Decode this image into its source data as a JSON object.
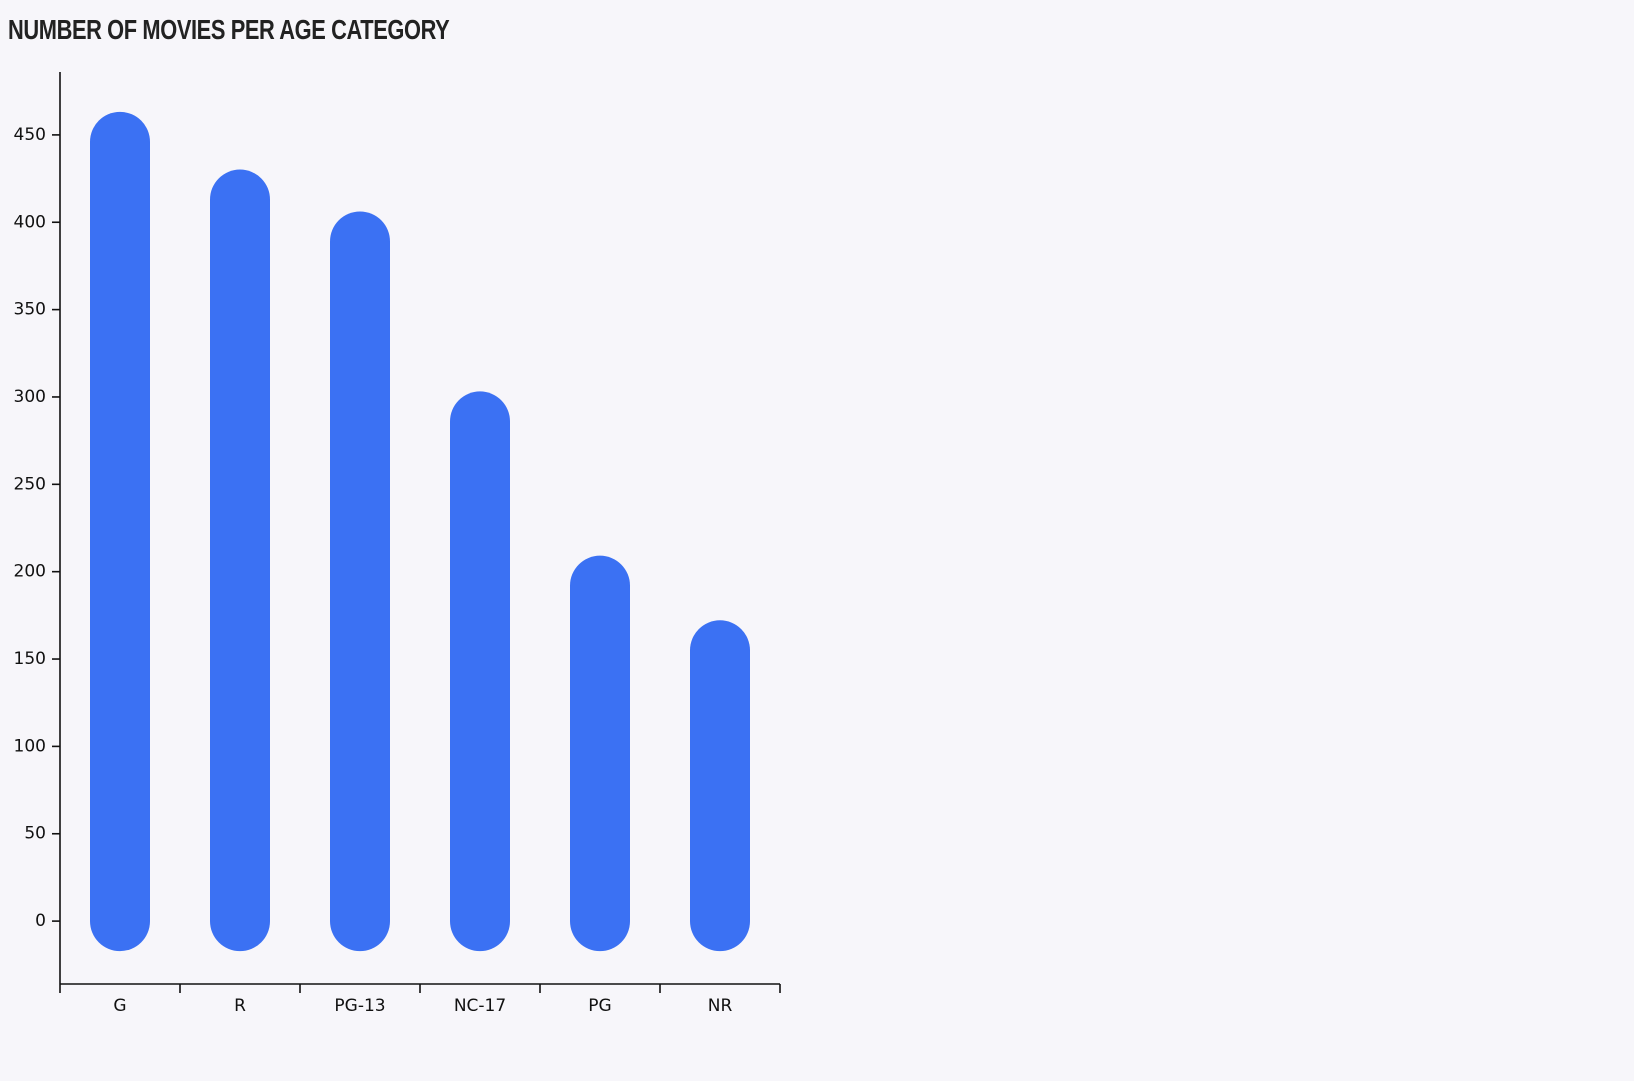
{
  "chart_data": {
    "type": "bar",
    "title": "NUMBER OF MOVIES PER AGE CATEGORY",
    "categories": [
      "G",
      "R",
      "PG-13",
      "NC-17",
      "PG",
      "NR"
    ],
    "values": [
      446,
      413,
      389,
      286,
      192,
      155
    ],
    "ylim": [
      -36,
      486
    ],
    "yticks": [
      0,
      50,
      100,
      150,
      200,
      250,
      300,
      350,
      400,
      450
    ],
    "ytick_labels": [
      "0",
      "50",
      "100",
      "150",
      "200",
      "250",
      "300",
      "350",
      "400",
      "450"
    ],
    "xlabel": "",
    "ylabel": "",
    "grid": false,
    "legend": "none",
    "bar_color": "#3b71f3",
    "bar_style": "rounded"
  }
}
